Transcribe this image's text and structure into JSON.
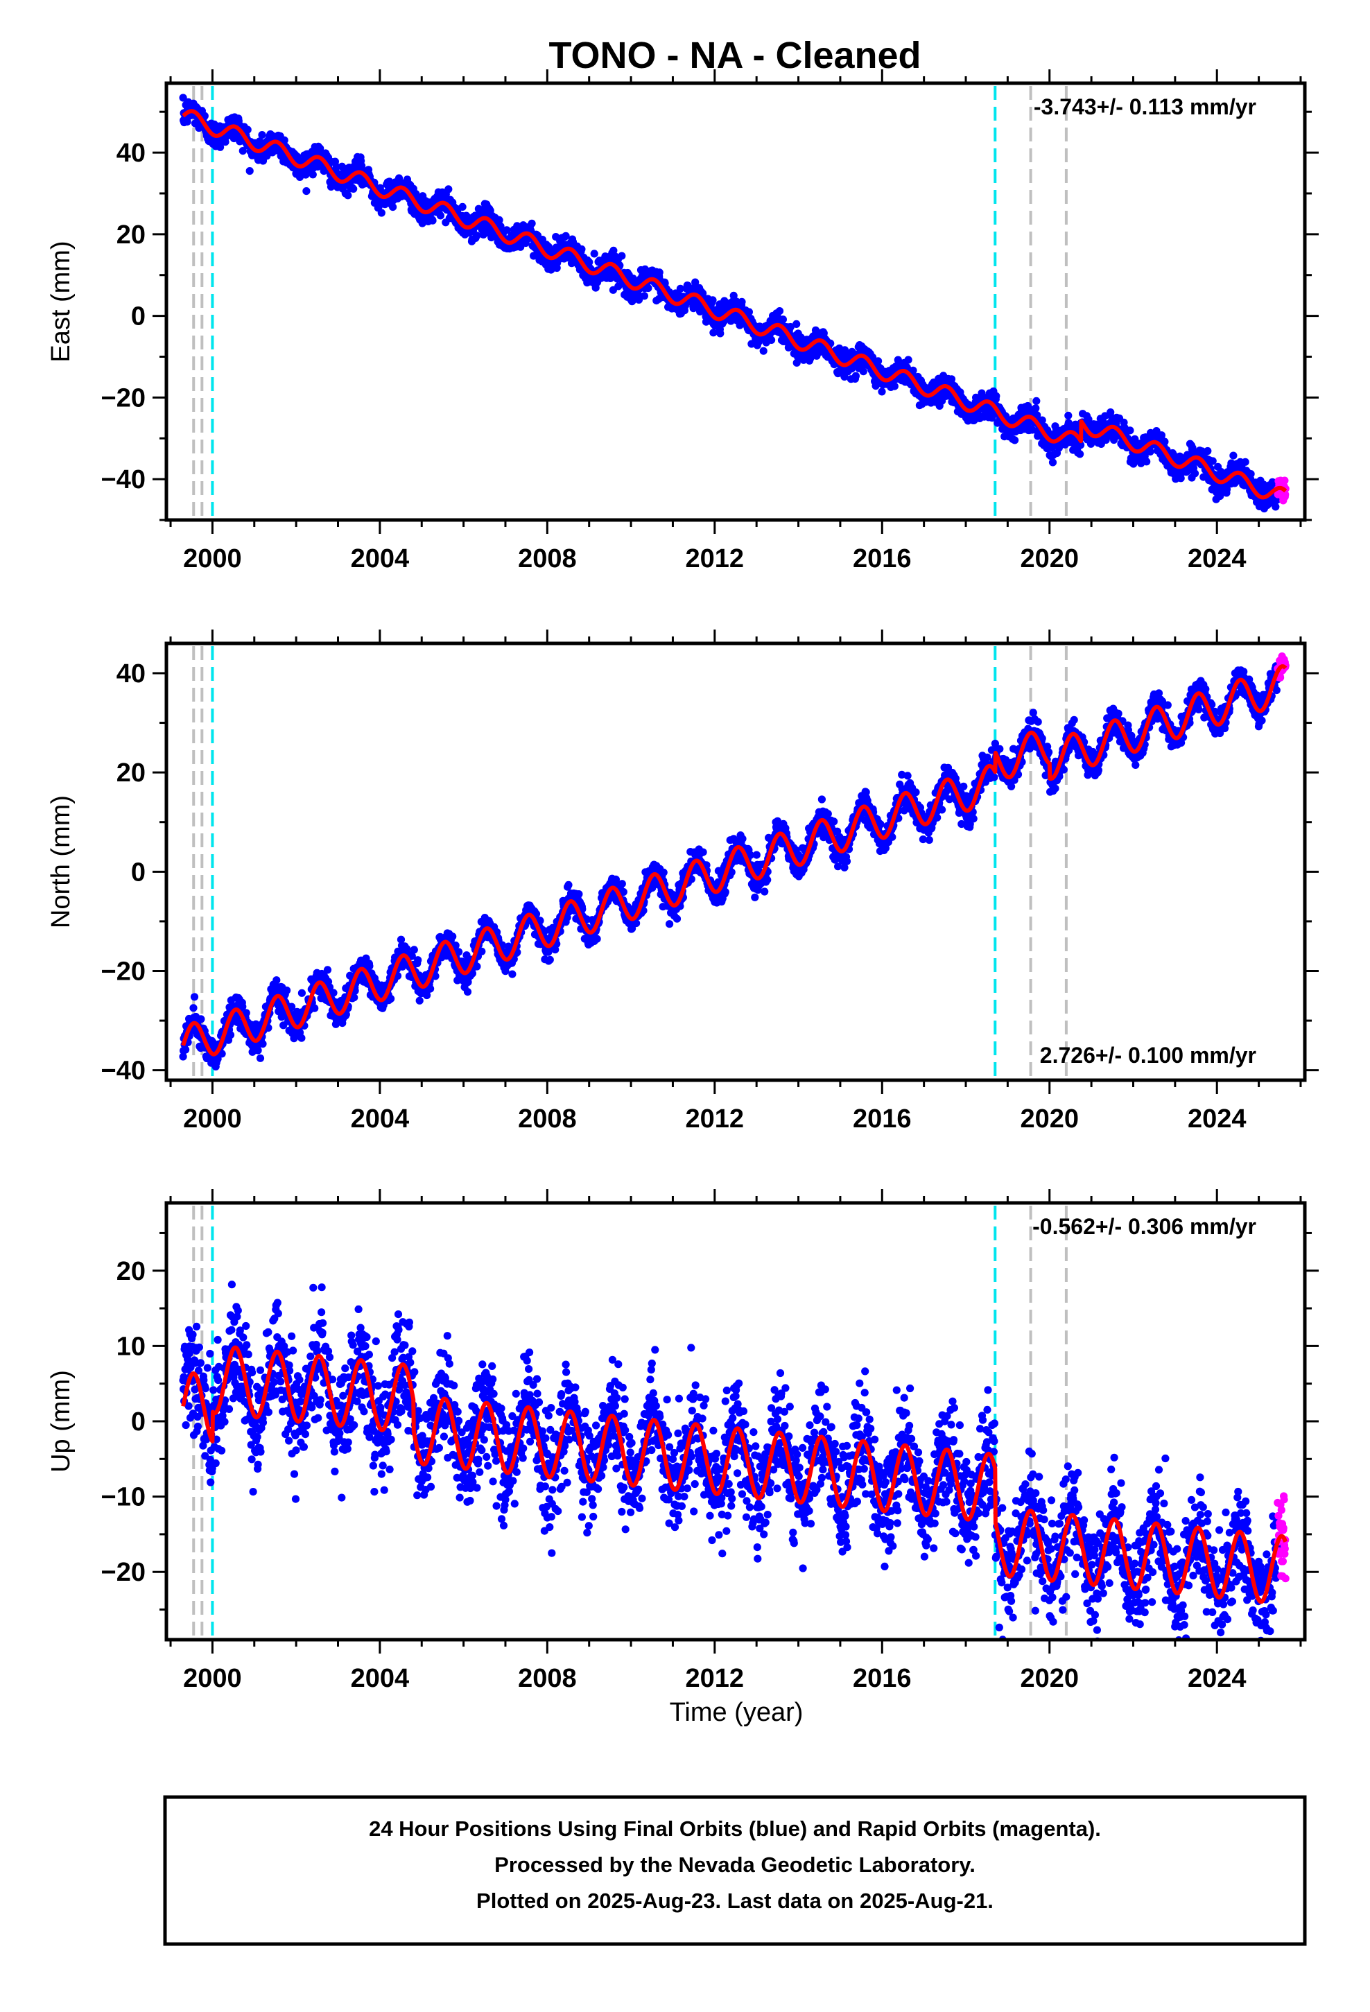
{
  "title": "TONO  - NA - Cleaned",
  "xlabel": "Time (year)",
  "footer": [
    "24 Hour Positions Using Final Orbits (blue) and Rapid Orbits (magenta).",
    "Processed by the Nevada Geodetic Laboratory.",
    "Plotted on 2025-Aug-23. Last data on 2025-Aug-21."
  ],
  "colors": {
    "final": "#0000ff",
    "rapid": "#ff00ff",
    "model": "#ff0000",
    "equipment_change": "#00e5ee",
    "other_offset": "#bfbfbf"
  },
  "chart_data": [
    {
      "type": "scatter",
      "name": "east",
      "ylabel": "East (mm)",
      "rate_label": "-3.743+/- 0.113 mm/yr",
      "rate_position": "top-right",
      "xlim": [
        1998.9,
        2026.1
      ],
      "ylim": [
        -50,
        57
      ],
      "xticks": [
        2000,
        2004,
        2008,
        2012,
        2016,
        2020,
        2024
      ],
      "yticks": [
        -40,
        -20,
        0,
        20,
        40
      ],
      "start": {
        "year": 1999.3,
        "value": 49
      },
      "rate_mm_per_yr": -3.743,
      "annual_amplitude": 2.0,
      "noise_mm": 1.6,
      "offsets": [
        {
          "year": 2018.7,
          "size": 0
        },
        {
          "year": 2020.75,
          "size": 5
        }
      ],
      "rapid_tail": {
        "start": 2025.45,
        "end": 2025.64
      },
      "equipment_change_lines": [
        2000.0,
        2018.7
      ],
      "other_offset_lines": [
        1999.55,
        1999.75,
        2019.55,
        2020.4
      ]
    },
    {
      "type": "scatter",
      "name": "north",
      "ylabel": "North (mm)",
      "rate_label": "2.726+/- 0.100 mm/yr",
      "rate_position": "bottom-right",
      "xlim": [
        1998.9,
        2026.1
      ],
      "ylim": [
        -42,
        46
      ],
      "xticks": [
        2000,
        2004,
        2008,
        2012,
        2016,
        2020,
        2024
      ],
      "yticks": [
        -40,
        -20,
        0,
        20,
        40
      ],
      "start": {
        "year": 1999.3,
        "value": -35
      },
      "rate_mm_per_yr": 2.726,
      "annual_amplitude": 3.8,
      "noise_mm": 1.5,
      "offsets": [
        {
          "year": 2018.7,
          "size": 4
        },
        {
          "year": 2020.0,
          "size": -3
        }
      ],
      "rapid_tail": {
        "start": 2025.45,
        "end": 2025.64
      },
      "equipment_change_lines": [
        2000.0,
        2018.7
      ],
      "other_offset_lines": [
        1999.55,
        1999.75,
        2019.55,
        2020.4
      ]
    },
    {
      "type": "scatter",
      "name": "up",
      "ylabel": "Up (mm)",
      "rate_label": "-0.562+/- 0.306 mm/yr",
      "rate_position": "top-right",
      "xlim": [
        1998.9,
        2026.1
      ],
      "ylim": [
        -29,
        29
      ],
      "xticks": [
        2000,
        2004,
        2008,
        2012,
        2016,
        2020,
        2024
      ],
      "yticks": [
        -20,
        -10,
        0,
        10,
        20
      ],
      "start": {
        "year": 1999.3,
        "value": 2
      },
      "rate_mm_per_yr": -0.562,
      "annual_amplitude": 4.5,
      "noise_mm": 3.6,
      "offsets": [
        {
          "year": 2000.0,
          "size": 4
        },
        {
          "year": 2004.8,
          "size": -4
        },
        {
          "year": 2018.7,
          "size": -7
        }
      ],
      "rapid_tail": {
        "start": 2025.45,
        "end": 2025.64
      },
      "equipment_change_lines": [
        2000.0,
        2018.7
      ],
      "other_offset_lines": [
        1999.55,
        1999.75,
        2019.55,
        2020.4
      ]
    }
  ]
}
